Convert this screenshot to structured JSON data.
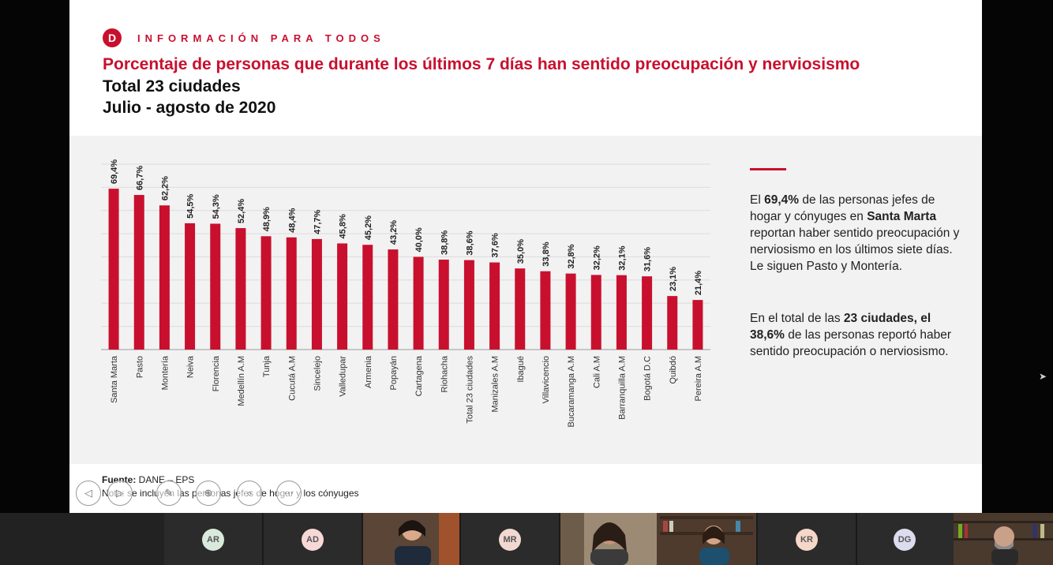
{
  "brand": {
    "logo_letter": "D",
    "text": "INFORMACIÓN PARA TODOS"
  },
  "title": "Porcentaje de personas que durante los últimos 7 días han sentido preocupación y nerviosismo",
  "subtitle_1": "Total 23 ciudades",
  "subtitle_2": "Julio - agosto de 2020",
  "colors": {
    "accent": "#c8102e",
    "bar": "#c8102e",
    "panel": "#f2f2f2"
  },
  "chart_data": {
    "type": "bar",
    "categories": [
      "Santa Marta",
      "Pasto",
      "Montería",
      "Neiva",
      "Florencia",
      "Medellín A.M",
      "Tunja",
      "Cucutá A.M",
      "Sincelejo",
      "Valledupar",
      "Armenia",
      "Popayán",
      "Cartagena",
      "Riohacha",
      "Total 23 ciudades",
      "Manizales A.M",
      "Ibagué",
      "Villavicencio",
      "Bucaramanga A.M",
      "Cali A.M",
      "Barranquilla A.M",
      "Bogotá D.C",
      "Quibdó",
      "Pereira A.M"
    ],
    "values": [
      69.4,
      66.7,
      62.2,
      54.5,
      54.3,
      52.4,
      48.9,
      48.4,
      47.7,
      45.8,
      45.2,
      43.2,
      40.0,
      38.8,
      38.6,
      37.6,
      35.0,
      33.8,
      32.8,
      32.2,
      32.1,
      31.6,
      23.1,
      21.4
    ],
    "labels": [
      "69,4%",
      "66,7%",
      "62,2%",
      "54,5%",
      "54,3%",
      "52,4%",
      "48,9%",
      "48,4%",
      "47,7%",
      "45,8%",
      "45,2%",
      "43,2%",
      "40,0%",
      "38,8%",
      "38,6%",
      "37,6%",
      "35,0%",
      "33,8%",
      "32,8%",
      "32,2%",
      "32,1%",
      "31,6%",
      "23,1%",
      "21,4%"
    ],
    "ylim": [
      0,
      80
    ],
    "grid": true,
    "xlabel": "",
    "ylabel": ""
  },
  "side_panel": {
    "p1_a": "El ",
    "p1_b": "69,4%",
    "p1_c": " de las personas jefes de hogar y cónyuges en ",
    "p1_d": "Santa Marta",
    "p1_e": " reportan haber sentido preocupación y nerviosismo en los últimos siete días. Le siguen Pasto y Montería.",
    "p2_a": "En el total de las ",
    "p2_b": "23 ciudades, el 38,6%",
    "p2_c": " de las personas reportó haber sentido preocupación o nerviosismo."
  },
  "footer": {
    "source_label": "Fuente:",
    "source_value": " DANE – EPS",
    "note": "Nota: se incluyen las personas jefes de hogar y los cónyuges"
  },
  "controls": [
    {
      "icon": "previous-slide-icon",
      "glyph": "◁"
    },
    {
      "icon": "next-slide-icon",
      "glyph": "▷"
    },
    {
      "icon": "pen-icon",
      "glyph": "✎"
    },
    {
      "icon": "zoom-icon",
      "glyph": "⊕"
    },
    {
      "icon": "search-icon",
      "glyph": "⌕"
    },
    {
      "icon": "more-options-icon",
      "glyph": "⋯"
    }
  ],
  "participants": [
    {
      "initials": "AR",
      "color": "#d9e9dc"
    },
    {
      "initials": "AD",
      "color": "#f6d9d6"
    },
    {
      "initials": "MR",
      "color": "#f1d9d2"
    },
    {
      "initials": "KR",
      "color": "#f5d7ca"
    },
    {
      "initials": "DG",
      "color": "#dcdcef"
    }
  ]
}
